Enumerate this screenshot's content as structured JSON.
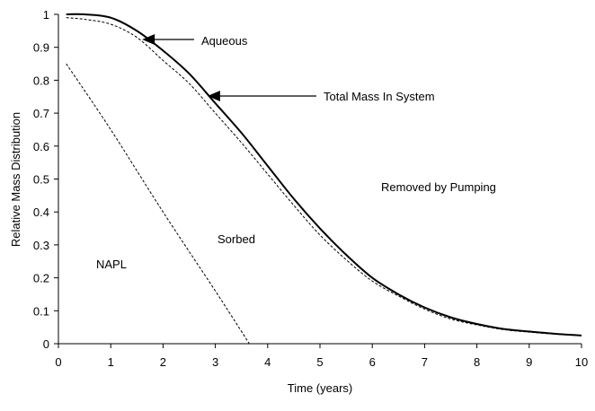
{
  "chart_data": {
    "type": "line",
    "title": "",
    "xlabel": "Time (years)",
    "ylabel": "Relative Mass Distribution",
    "xlim": [
      0,
      10
    ],
    "ylim": [
      0,
      1
    ],
    "xticks": [
      "0",
      "1",
      "2",
      "3",
      "4",
      "5",
      "6",
      "7",
      "8",
      "9",
      "10"
    ],
    "yticks": [
      "0",
      "0.1",
      "0.2",
      "0.3",
      "0.4",
      "0.5",
      "0.6",
      "0.7",
      "0.8",
      "0.9",
      "1"
    ],
    "grid": false,
    "series": [
      {
        "name": "Total Mass In System",
        "style": "solid",
        "x": [
          0.15,
          0.5,
          1,
          1.5,
          2,
          2.5,
          3,
          3.5,
          4,
          4.5,
          5,
          5.5,
          6,
          6.5,
          7,
          7.5,
          8,
          8.5,
          9,
          9.5,
          10
        ],
        "y": [
          1.0,
          1.0,
          0.99,
          0.95,
          0.89,
          0.82,
          0.73,
          0.64,
          0.54,
          0.44,
          0.35,
          0.27,
          0.2,
          0.15,
          0.11,
          0.08,
          0.06,
          0.045,
          0.037,
          0.03,
          0.025
        ]
      },
      {
        "name": "Aqueous",
        "style": "dashed",
        "x": [
          0.15,
          0.5,
          1,
          1.5,
          2,
          2.5,
          3,
          3.5,
          4,
          4.5,
          5,
          5.5,
          6,
          6.5,
          7,
          7.5,
          8,
          8.5,
          9,
          9.5,
          10
        ],
        "y": [
          0.99,
          0.985,
          0.97,
          0.93,
          0.86,
          0.79,
          0.7,
          0.61,
          0.515,
          0.42,
          0.33,
          0.255,
          0.19,
          0.145,
          0.105,
          0.075,
          0.057,
          0.043,
          0.035,
          0.029,
          0.024
        ]
      },
      {
        "name": "NAPL",
        "style": "dashed",
        "x": [
          0.15,
          1,
          2,
          3,
          3.65
        ],
        "y": [
          0.85,
          0.65,
          0.4,
          0.16,
          0.0
        ]
      }
    ],
    "annotations": [
      {
        "text": "Aqueous",
        "arrow_to": [
          1.6,
          0.92
        ]
      },
      {
        "text": "Total Mass In System",
        "arrow_to": [
          2.85,
          0.75
        ]
      },
      {
        "text": "Removed by Pumping"
      },
      {
        "text": "Sorbed"
      },
      {
        "text": "NAPL"
      }
    ]
  }
}
